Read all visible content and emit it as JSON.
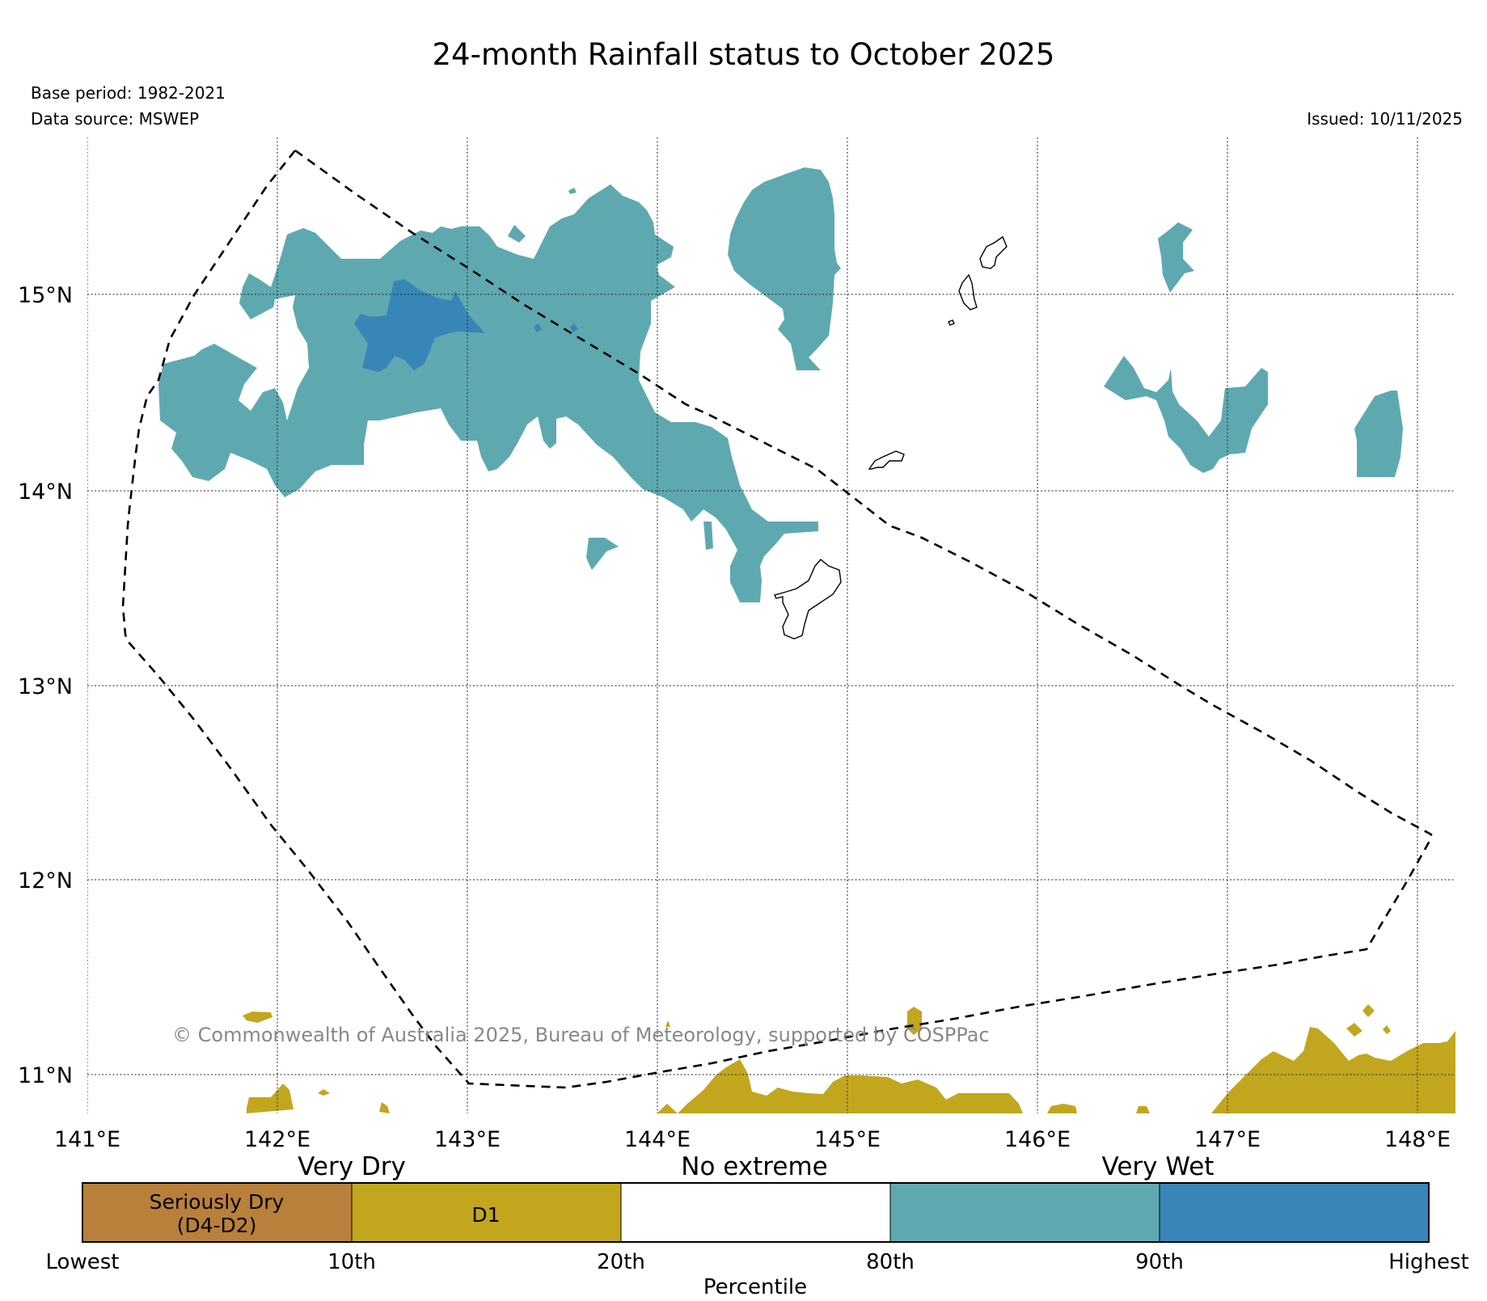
{
  "title": "24-month Rainfall status to October 2025",
  "base_period": "Base period: 1982-2021",
  "data_source": "Data source: MSWEP",
  "issued": "Issued: 10/11/2025",
  "copyright": "© Commonwealth of Australia 2025, Bureau of Meteorology, supported by COSPPac",
  "map": {
    "lon_labels": [
      "141°E",
      "142°E",
      "143°E",
      "144°E",
      "145°E",
      "146°E",
      "147°E",
      "148°E"
    ],
    "lat_labels": [
      "15°N",
      "14°N",
      "13°N",
      "12°N",
      "11°N"
    ],
    "gridlines": true,
    "boundary": "dashed",
    "colors": {
      "seriously_dry": "#b8803a",
      "d1": "#c2a61e",
      "no_extreme": "#ffffff",
      "very_wet_80": "#5ea9b0",
      "very_wet_90": "#3886b8"
    }
  },
  "colorbar": {
    "groups": [
      "Very Dry",
      "No extreme",
      "Very Wet"
    ],
    "segments": [
      {
        "label_line1": "Seriously Dry",
        "label_line2": "(D4-D2)",
        "color": "#b8803a"
      },
      {
        "label_line1": "D1",
        "label_line2": "",
        "color": "#c2a61e"
      },
      {
        "label_line1": "",
        "label_line2": "",
        "color": "#ffffff"
      },
      {
        "label_line1": "",
        "label_line2": "",
        "color": "#5ea9b0"
      },
      {
        "label_line1": "",
        "label_line2": "",
        "color": "#3886b8"
      }
    ],
    "ticks": [
      "Lowest",
      "10th",
      "20th",
      "80th",
      "90th",
      "Highest"
    ],
    "xlabel": "Percentile"
  }
}
